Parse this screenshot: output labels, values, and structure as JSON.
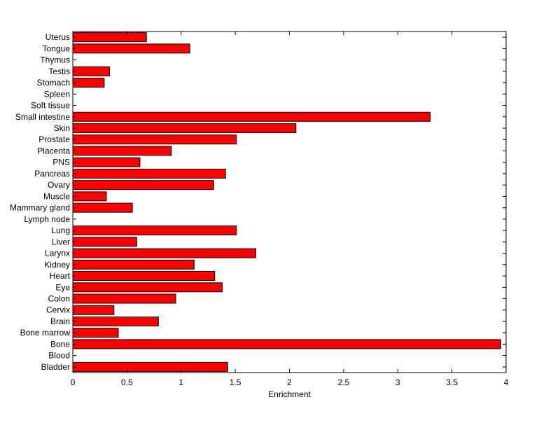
{
  "chart_data": {
    "type": "bar",
    "orientation": "horizontal",
    "title": "",
    "xlabel": "Enrichment",
    "ylabel": "",
    "xlim": [
      0,
      4
    ],
    "x_ticks": [
      0,
      0.5,
      1,
      1.5,
      2,
      2.5,
      3,
      3.5,
      4
    ],
    "x_tick_labels": [
      "0",
      "0.5",
      "1",
      "1.5",
      "2",
      "2.5",
      "3",
      "3.5",
      "4"
    ],
    "grid": false,
    "colors": {
      "bar_fill": "#ff0000",
      "bar_edge": "#000000",
      "axes": "#000000",
      "background": "#ffffff"
    },
    "categories": [
      "Bladder",
      "Blood",
      "Bone",
      "Bone marrow",
      "Brain",
      "Cervix",
      "Colon",
      "Eye",
      "Heart",
      "Kidney",
      "Larynx",
      "Liver",
      "Lung",
      "Lymph node",
      "Mammary gland",
      "Muscle",
      "Ovary",
      "Pancreas",
      "PNS",
      "Placenta",
      "Prostate",
      "Skin",
      "Small intestine",
      "Soft tissue",
      "Spleen",
      "Stomach",
      "Testis",
      "Thymus",
      "Tongue",
      "Uterus"
    ],
    "values": [
      1.43,
      0,
      3.95,
      0.42,
      0.79,
      0.38,
      0.95,
      1.38,
      1.31,
      1.12,
      1.69,
      0.59,
      1.51,
      0,
      0.55,
      0.31,
      1.3,
      1.41,
      0.62,
      0.91,
      1.51,
      2.06,
      3.3,
      0,
      0,
      0.29,
      0.34,
      0,
      1.08,
      0.68
    ]
  }
}
